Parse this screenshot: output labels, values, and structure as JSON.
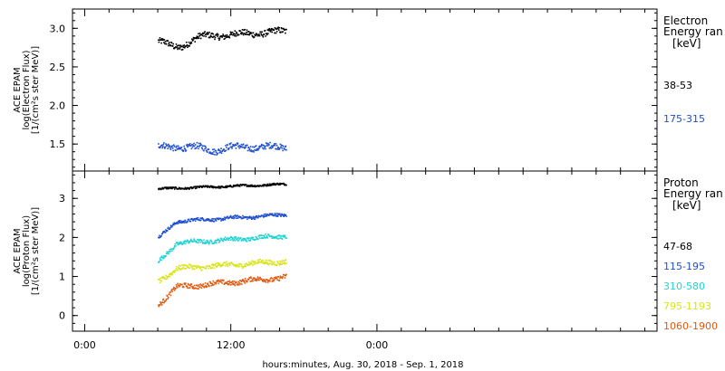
{
  "chart_data": [
    {
      "type": "scatter",
      "panel": "electron",
      "ylabel_lines": [
        "ACE EPAM",
        "log(Electron Flux)",
        "[1/(cm²s ster MeV)]"
      ],
      "ylim": [
        1.15,
        3.25
      ],
      "yticks": [
        1.5,
        2.0,
        2.5,
        3.0
      ],
      "ytick_labels": [
        "1.5",
        "2.0",
        "2.5",
        "3.0"
      ],
      "legend_title_lines": [
        "Electron",
        "Energy ran"
      ],
      "legend_unit": "[keV]",
      "series": [
        {
          "name": "38-53",
          "color": "#000000",
          "start_hour": 6.0,
          "end_hour": 16.5,
          "base": 2.92,
          "trend": 0.1,
          "noise": 0.04,
          "dip": {
            "center": 7.5,
            "width": 1.2,
            "depth": 0.12
          }
        },
        {
          "name": "175-315",
          "color": "#1f4fd1",
          "start_hour": 6.0,
          "end_hour": 16.5,
          "base": 1.47,
          "trend": 0.0,
          "noise": 0.04,
          "dip": {
            "center": 10.5,
            "width": 1.0,
            "depth": 0.04
          }
        }
      ]
    },
    {
      "type": "scatter",
      "panel": "proton",
      "ylabel_lines": [
        "ACE EPAM",
        "log(Proton Flux)",
        "[1/(cm²s ster MeV)]"
      ],
      "ylim": [
        -0.4,
        3.7
      ],
      "yticks": [
        0,
        1,
        2,
        3
      ],
      "ytick_labels": [
        "0",
        "1",
        "2",
        "3"
      ],
      "legend_title_lines": [
        "Proton",
        "Energy ran"
      ],
      "legend_unit": "[keV]",
      "series": [
        {
          "name": "47-68",
          "color": "#000000",
          "start_hour": 6.0,
          "end_hour": 16.5,
          "base": 3.32,
          "trend": 0.12,
          "noise": 0.025,
          "rise": 0.0
        },
        {
          "name": "115-195",
          "color": "#1f4fd1",
          "start_hour": 6.0,
          "end_hour": 16.5,
          "base": 2.5,
          "trend": 0.2,
          "noise": 0.04,
          "rise": 0.4
        },
        {
          "name": "310-580",
          "color": "#22d3d3",
          "start_hour": 6.0,
          "end_hour": 16.5,
          "base": 1.95,
          "trend": 0.22,
          "noise": 0.05,
          "rise": 0.45
        },
        {
          "name": "795-1193",
          "color": "#d8e41a",
          "start_hour": 6.0,
          "end_hour": 16.5,
          "base": 1.3,
          "trend": 0.22,
          "noise": 0.06,
          "rise": 0.3
        },
        {
          "name": "1060-1900",
          "color": "#e05a10",
          "start_hour": 6.0,
          "end_hour": 16.5,
          "base": 0.85,
          "trend": 0.3,
          "noise": 0.06,
          "rise": 0.4
        }
      ]
    }
  ],
  "x_axis": {
    "range_hours": [
      -1,
      47
    ],
    "major_ticks": [
      0,
      12,
      24
    ],
    "major_labels": [
      "0:00",
      "12:00",
      "0:00"
    ],
    "minor_step": 2,
    "xlabel": "hours:minutes, Aug. 30, 2018 - Sep.  1, 2018"
  }
}
